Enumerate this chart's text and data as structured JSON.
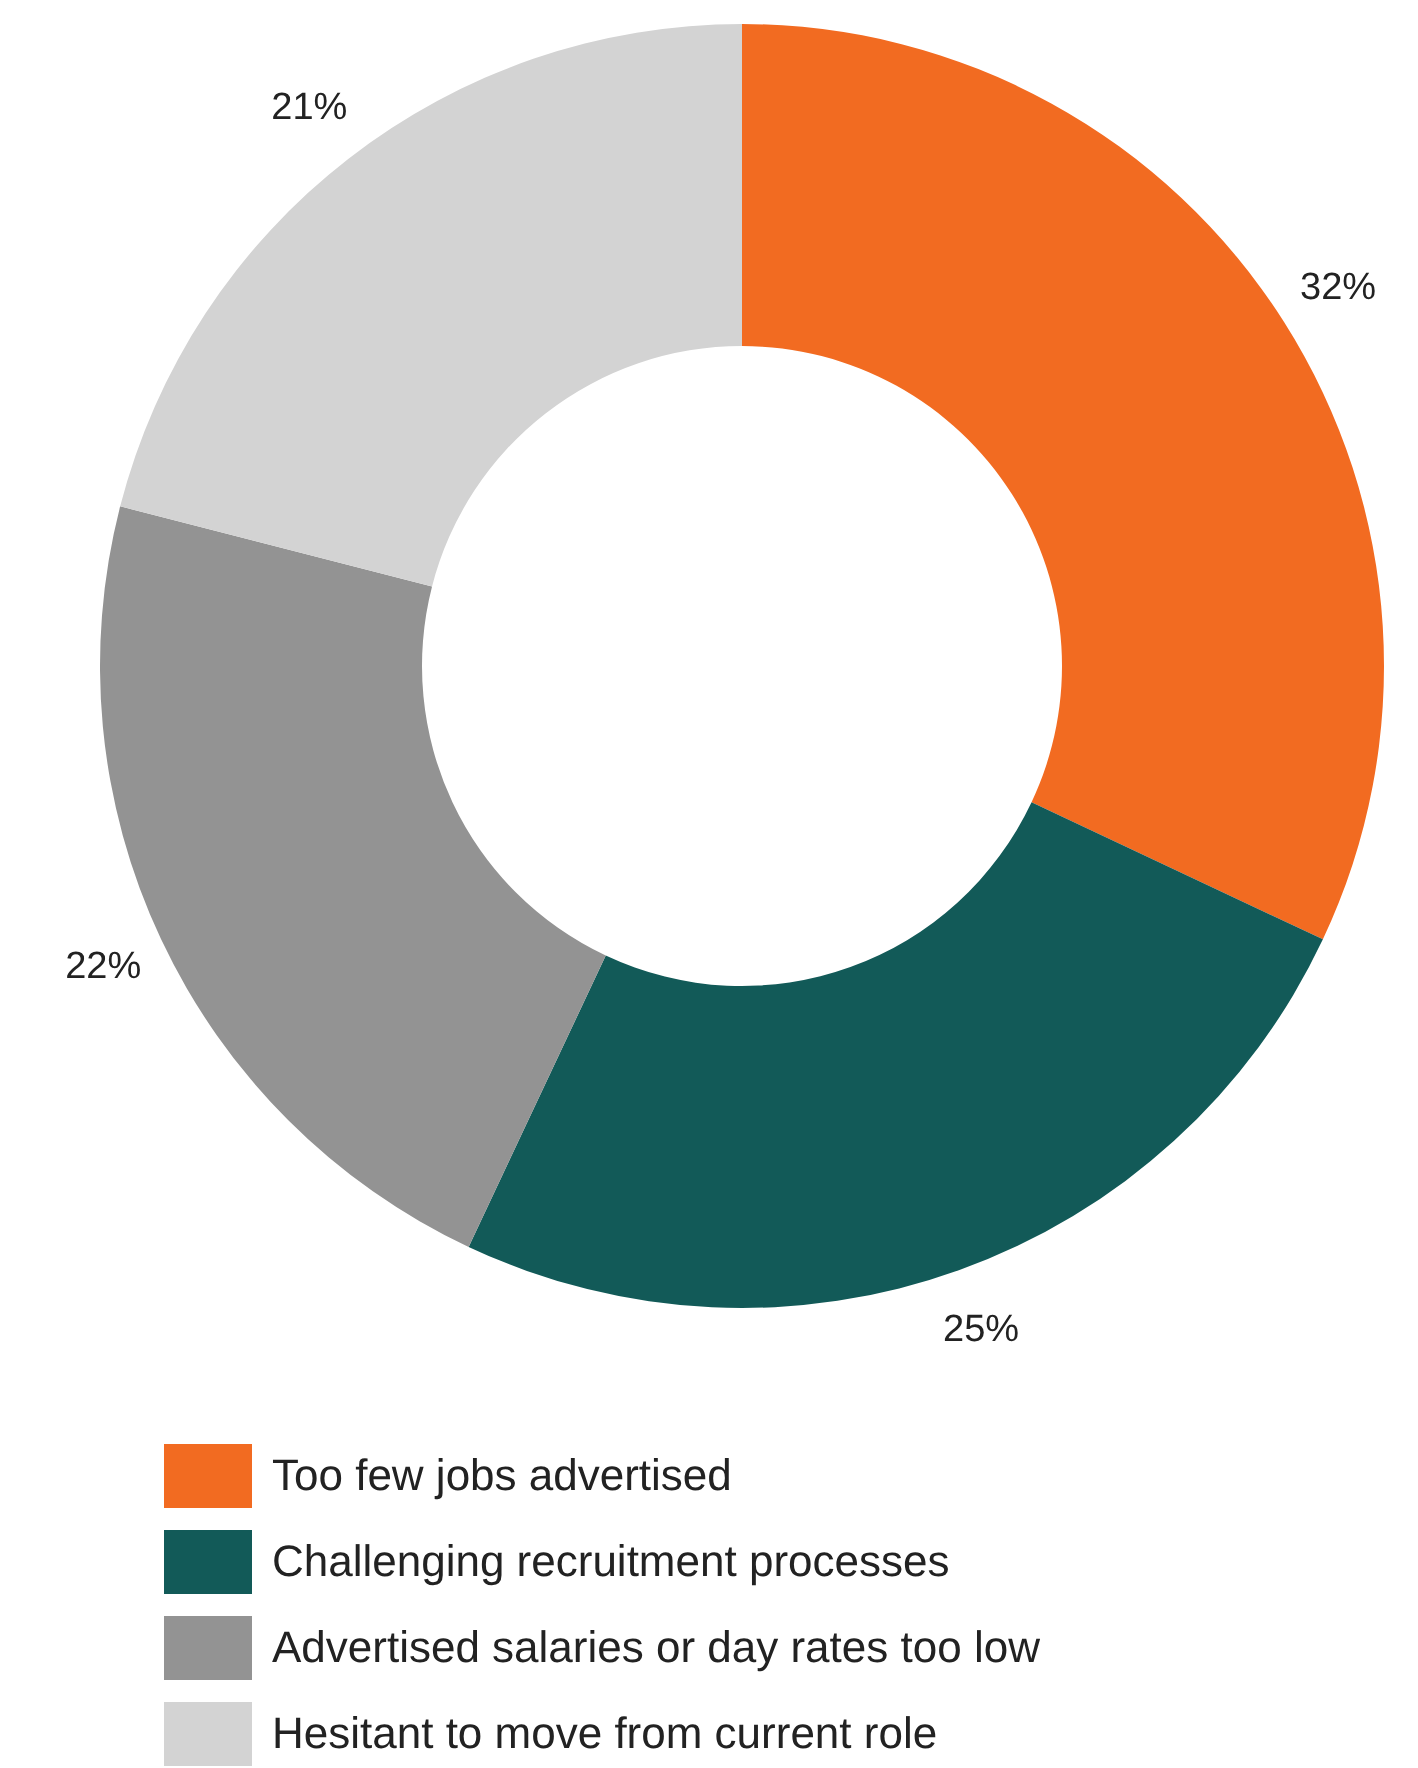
{
  "chart_data": {
    "type": "donut",
    "categories": [
      "Too few jobs advertised",
      "Challenging recruitment processes",
      "Advertised salaries or day rates too low",
      "Hesitant to move from current role"
    ],
    "values": [
      32,
      25,
      22,
      21
    ],
    "value_labels": [
      "32%",
      "25%",
      "22%",
      "21%"
    ],
    "colors": [
      "#f26b21",
      "#125a58",
      "#939393",
      "#d3d3d3"
    ],
    "legend": "bottom"
  }
}
